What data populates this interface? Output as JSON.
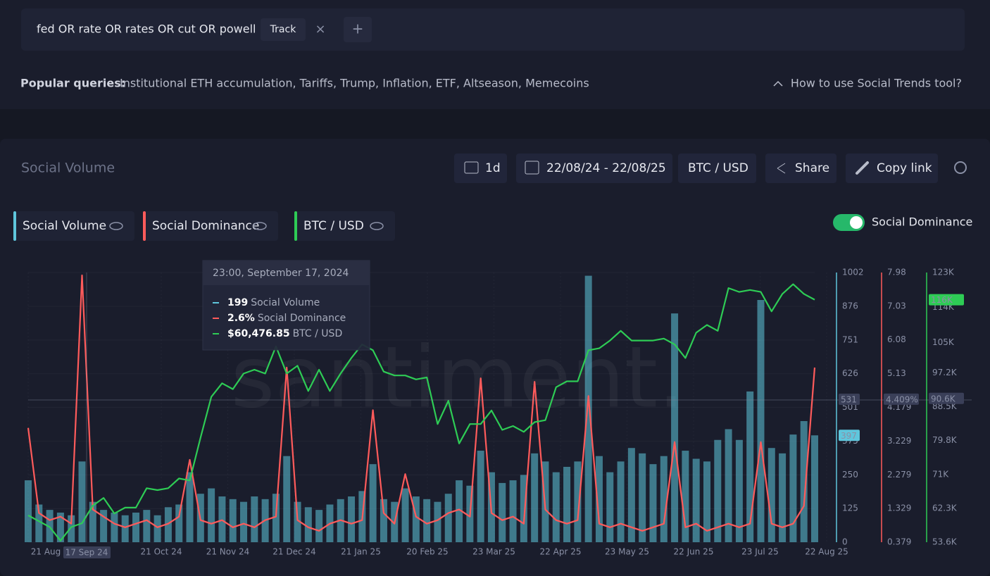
{
  "search": {
    "query": "fed OR rate OR rates OR cut OR powell",
    "track": "Track",
    "close": "×",
    "add": "+"
  },
  "popular": {
    "label": "Popular queries:",
    "items": "Institutional ETH accumulation, Tariffs, Trump, Inflation, ETF, Altseason, Memecoins",
    "help": "How to use Social Trends tool?"
  },
  "toolbar": {
    "title": "Social Volume",
    "interval": "1d",
    "range": "22/08/24 - 22/08/25",
    "pair": "BTC / USD",
    "share": "Share",
    "copy": "Copy link"
  },
  "toggle": {
    "label": "Social Dominance",
    "on": true
  },
  "tooltip": {
    "title": "23:00, September 17, 2024",
    "rows": [
      {
        "value": "199",
        "label": "Social Volume"
      },
      {
        "value": "2.6%",
        "label": "Social Dominance"
      },
      {
        "value": "$60,476.85",
        "label": "BTC / USD"
      }
    ]
  },
  "chart_data": {
    "type": "bar-line",
    "watermark": "santiment.",
    "grid": true,
    "xticks": [
      "21 Aug",
      "21 Oct 24",
      "21 Nov 24",
      "21 Dec 24",
      "21 Jan 25",
      "20 Feb 25",
      "23 Mar 25",
      "22 Apr 25",
      "23 May 25",
      "22 Jun 25",
      "23 Jul 25",
      "22 Aug 25"
    ],
    "cursor_label": "17 Sep 24",
    "ylim": [
      0,
      1002
    ],
    "yticks": [
      0,
      125,
      250,
      375,
      501,
      626,
      751,
      876,
      1002
    ],
    "y2lim": [
      0.379,
      7.98
    ],
    "y2ticks": [
      0.379,
      1.329,
      2.279,
      3.229,
      4.179,
      5.13,
      6.08,
      7.03,
      7.98
    ],
    "y3lim": [
      53600,
      123000
    ],
    "y3ticks": [
      {
        "value": 53600,
        "label": "53.6K"
      },
      {
        "value": 62300,
        "label": "62.3K"
      },
      {
        "value": 71000,
        "label": "71K"
      },
      {
        "value": 79800,
        "label": "79.8K"
      },
      {
        "value": 88500,
        "label": "88.5K"
      },
      {
        "value": 97200,
        "label": "97.2K"
      },
      {
        "value": 105000,
        "label": "105K"
      },
      {
        "value": 114000,
        "label": "114K"
      },
      {
        "value": 123000,
        "label": "123K"
      }
    ],
    "series": [
      {
        "name": "Social Volume",
        "type": "bar",
        "axis": "y",
        "color": "#5fc6dc",
        "values": [
          230,
          140,
          120,
          110,
          100,
          300,
          150,
          120,
          110,
          100,
          110,
          120,
          100,
          130,
          140,
          260,
          180,
          200,
          170,
          160,
          150,
          170,
          160,
          180,
          320,
          150,
          130,
          120,
          140,
          160,
          170,
          190,
          290,
          160,
          150,
          200,
          170,
          160,
          150,
          180,
          230,
          210,
          340,
          260,
          220,
          230,
          250,
          330,
          300,
          260,
          280,
          300,
          990,
          320,
          260,
          300,
          350,
          330,
          290,
          320,
          850,
          340,
          310,
          300,
          380,
          420,
          380,
          560,
          900,
          350,
          330,
          400,
          450,
          397
        ]
      },
      {
        "name": "Social Dominance",
        "type": "line",
        "axis": "y2",
        "color": "#ff5b5b",
        "values": [
          3.6,
          1.2,
          1.0,
          1.1,
          0.9,
          7.9,
          1.3,
          1.1,
          0.9,
          0.8,
          0.9,
          1.0,
          0.8,
          0.9,
          1.1,
          2.7,
          1.0,
          0.9,
          1.0,
          0.8,
          0.9,
          0.8,
          1.0,
          1.1,
          5.3,
          1.0,
          0.8,
          0.7,
          0.9,
          1.0,
          0.9,
          1.0,
          4.1,
          1.2,
          0.9,
          2.3,
          1.1,
          0.9,
          1.0,
          1.2,
          1.3,
          1.1,
          5.0,
          1.2,
          1.0,
          1.1,
          0.9,
          4.9,
          1.3,
          1.0,
          0.9,
          1.0,
          4.5,
          0.9,
          0.8,
          0.9,
          0.8,
          0.7,
          0.8,
          0.9,
          3.2,
          0.8,
          0.9,
          0.7,
          0.8,
          0.9,
          0.8,
          0.9,
          3.2,
          0.9,
          0.8,
          0.9,
          1.4,
          5.3
        ]
      },
      {
        "name": "BTC / USD",
        "type": "line",
        "axis": "y3",
        "color": "#2ecc55",
        "values": [
          60500,
          59000,
          57500,
          54000,
          57500,
          58500,
          63000,
          65000,
          61000,
          62500,
          62500,
          67500,
          67000,
          67500,
          70000,
          69500,
          80500,
          91000,
          94500,
          93000,
          97000,
          98000,
          97000,
          104000,
          97000,
          99000,
          92500,
          98000,
          92500,
          97000,
          101000,
          104500,
          103000,
          97500,
          96500,
          96500,
          95500,
          96000,
          84000,
          90000,
          79000,
          84000,
          84000,
          87500,
          82500,
          83500,
          82000,
          84500,
          85000,
          93500,
          95000,
          95000,
          103000,
          103500,
          105500,
          108000,
          105500,
          105500,
          105500,
          106000,
          104500,
          101000,
          107500,
          109500,
          108000,
          119000,
          118000,
          118500,
          118000,
          113000,
          117500,
          120000,
          117500,
          116000
        ]
      }
    ],
    "badges": [
      {
        "axis": "y",
        "value": 531,
        "color": "#3a3f58"
      },
      {
        "axis": "y",
        "value": 397,
        "color": "#5fc6dc"
      },
      {
        "axis": "y2",
        "value": 4.409,
        "label": "4.409%",
        "color": "#3a3f58"
      },
      {
        "axis": "y3",
        "value": 90600,
        "label": "90.6K",
        "color": "#3a3f58"
      },
      {
        "axis": "y3",
        "value": 116000,
        "label": "116K",
        "color": "#2ecc55"
      }
    ]
  }
}
